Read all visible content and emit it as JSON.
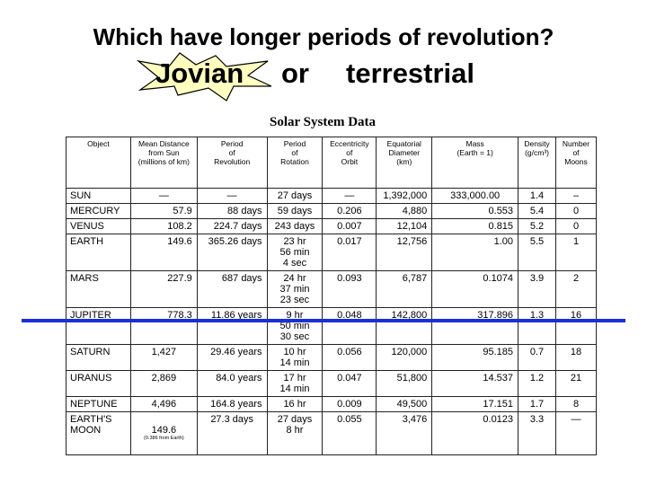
{
  "question": "Which have longer periods of revolution?",
  "choices": {
    "jovian": "Jovian",
    "or": "or",
    "terrestrial": "terrestrial"
  },
  "table_title": "Solar System Data",
  "columns": [
    "Object",
    "Mean Distance\nfrom Sun\n(millions of km)",
    "Period\nof\nRevolution",
    "Period\nof\nRotation",
    "Eccentricity\nof\nOrbit",
    "Equatorial\nDiameter\n(km)",
    "Mass\n(Earth = 1)",
    "Density\n(g/cm³)",
    "Number\nof\nMoons"
  ],
  "rows": [
    {
      "object": "SUN",
      "distance": "—",
      "revolution": "—",
      "rotation": "27 days",
      "eccentricity": "—",
      "diameter": "1,392,000",
      "mass": "333,000.00",
      "density": "1.4",
      "moons": "–"
    },
    {
      "object": "MERCURY",
      "distance": "57.9",
      "revolution": "88 days",
      "rotation": "59 days",
      "eccentricity": "0.206",
      "diameter": "4,880",
      "mass": "0.553",
      "density": "5.4",
      "moons": "0"
    },
    {
      "object": "VENUS",
      "distance": "108.2",
      "revolution": "224.7 days",
      "rotation": "243 days",
      "eccentricity": "0.007",
      "diameter": "12,104",
      "mass": "0.815",
      "density": "5.2",
      "moons": "0"
    },
    {
      "object": "EARTH",
      "distance": "149.6",
      "revolution": "365.26 days",
      "rotation": "23 hr\n56 min\n4 sec",
      "eccentricity": "0.017",
      "diameter": "12,756",
      "mass": "1.00",
      "density": "5.5",
      "moons": "1"
    },
    {
      "object": "MARS",
      "distance": "227.9",
      "revolution": "687 days",
      "rotation": "24 hr\n37 min\n23 sec",
      "eccentricity": "0.093",
      "diameter": "6,787",
      "mass": "0.1074",
      "density": "3.9",
      "moons": "2"
    },
    {
      "object": "JUPITER",
      "distance": "778.3",
      "revolution": "11.86 years",
      "rotation": "9 hr\n50 min\n30 sec",
      "eccentricity": "0.048",
      "diameter": "142,800",
      "mass": "317.896",
      "density": "1.3",
      "moons": "16"
    },
    {
      "object": "SATURN",
      "distance": "1,427",
      "revolution": "29.46 years",
      "rotation": "10 hr\n14 min",
      "eccentricity": "0.056",
      "diameter": "120,000",
      "mass": "95.185",
      "density": "0.7",
      "moons": "18"
    },
    {
      "object": "URANUS",
      "distance": "2,869",
      "revolution": "84.0 years",
      "rotation": "17 hr\n14 min",
      "eccentricity": "0.047",
      "diameter": "51,800",
      "mass": "14.537",
      "density": "1.2",
      "moons": "21"
    },
    {
      "object": "NEPTUNE",
      "distance": "4,496",
      "revolution": "164.8 years",
      "rotation": "16 hr",
      "eccentricity": "0.009",
      "diameter": "49,500",
      "mass": "17.151",
      "density": "1.7",
      "moons": "8"
    },
    {
      "object": "EARTH'S\nMOON",
      "distance": "149.6",
      "distance_note": "(0.386 from Earth)",
      "revolution": "27.3 days",
      "rotation": "27 days\n8 hr",
      "eccentricity": "0.055",
      "diameter": "3,476",
      "mass": "0.0123",
      "density": "3.3",
      "moons": "—"
    }
  ],
  "colors": {
    "divider": "#1a2fd6",
    "burst_fill": "#ffffc0",
    "text": "#000000"
  }
}
